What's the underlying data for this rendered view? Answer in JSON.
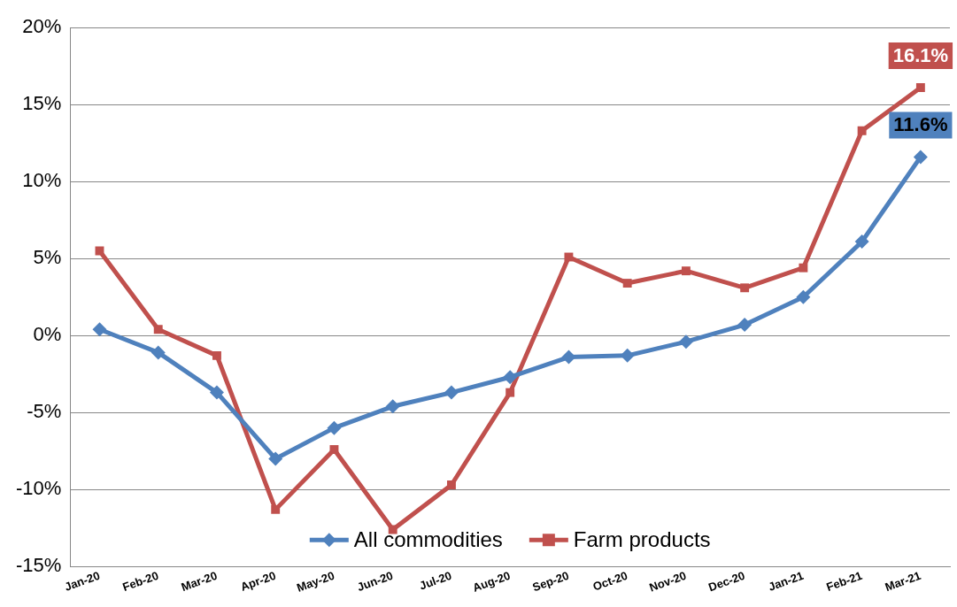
{
  "chart_data": {
    "type": "line",
    "categories": [
      "Jan-20",
      "Feb-20",
      "Mar-20",
      "Apr-20",
      "May-20",
      "Jun-20",
      "Jul-20",
      "Aug-20",
      "Sep-20",
      "Oct-20",
      "Nov-20",
      "Dec-20",
      "Jan-21",
      "Feb-21",
      "Mar-21"
    ],
    "series": [
      {
        "name": "All commodities",
        "color": "#4f81bd",
        "marker": "diamond",
        "values": [
          0.4,
          -1.1,
          -3.7,
          -8.0,
          -6.0,
          -4.6,
          -3.7,
          -2.7,
          -1.4,
          -1.3,
          -0.4,
          0.7,
          2.5,
          6.1,
          11.6
        ],
        "value_labels": [
          null,
          null,
          null,
          null,
          null,
          null,
          null,
          null,
          null,
          null,
          null,
          null,
          null,
          null,
          "11.6%"
        ]
      },
      {
        "name": "Farm products",
        "color": "#c0504d",
        "marker": "square",
        "values": [
          5.5,
          0.4,
          -1.3,
          -11.3,
          -7.4,
          -12.6,
          -9.7,
          -3.7,
          5.1,
          3.4,
          4.2,
          3.1,
          4.4,
          13.3,
          16.1
        ],
        "value_labels": [
          null,
          null,
          null,
          null,
          null,
          null,
          null,
          null,
          null,
          null,
          null,
          null,
          null,
          null,
          "16.1%"
        ]
      }
    ],
    "ylim": [
      -15,
      20
    ],
    "yticks": [
      {
        "value": -15,
        "label": "-15%"
      },
      {
        "value": -10,
        "label": "-10%"
      },
      {
        "value": -5,
        "label": "-5%"
      },
      {
        "value": 0,
        "label": "0%"
      },
      {
        "value": 5,
        "label": "5%"
      },
      {
        "value": 10,
        "label": "10%"
      },
      {
        "value": 15,
        "label": "15%"
      },
      {
        "value": 20,
        "label": "20%"
      }
    ],
    "grid": "y",
    "legend": "bottom",
    "line_style": "solid"
  }
}
